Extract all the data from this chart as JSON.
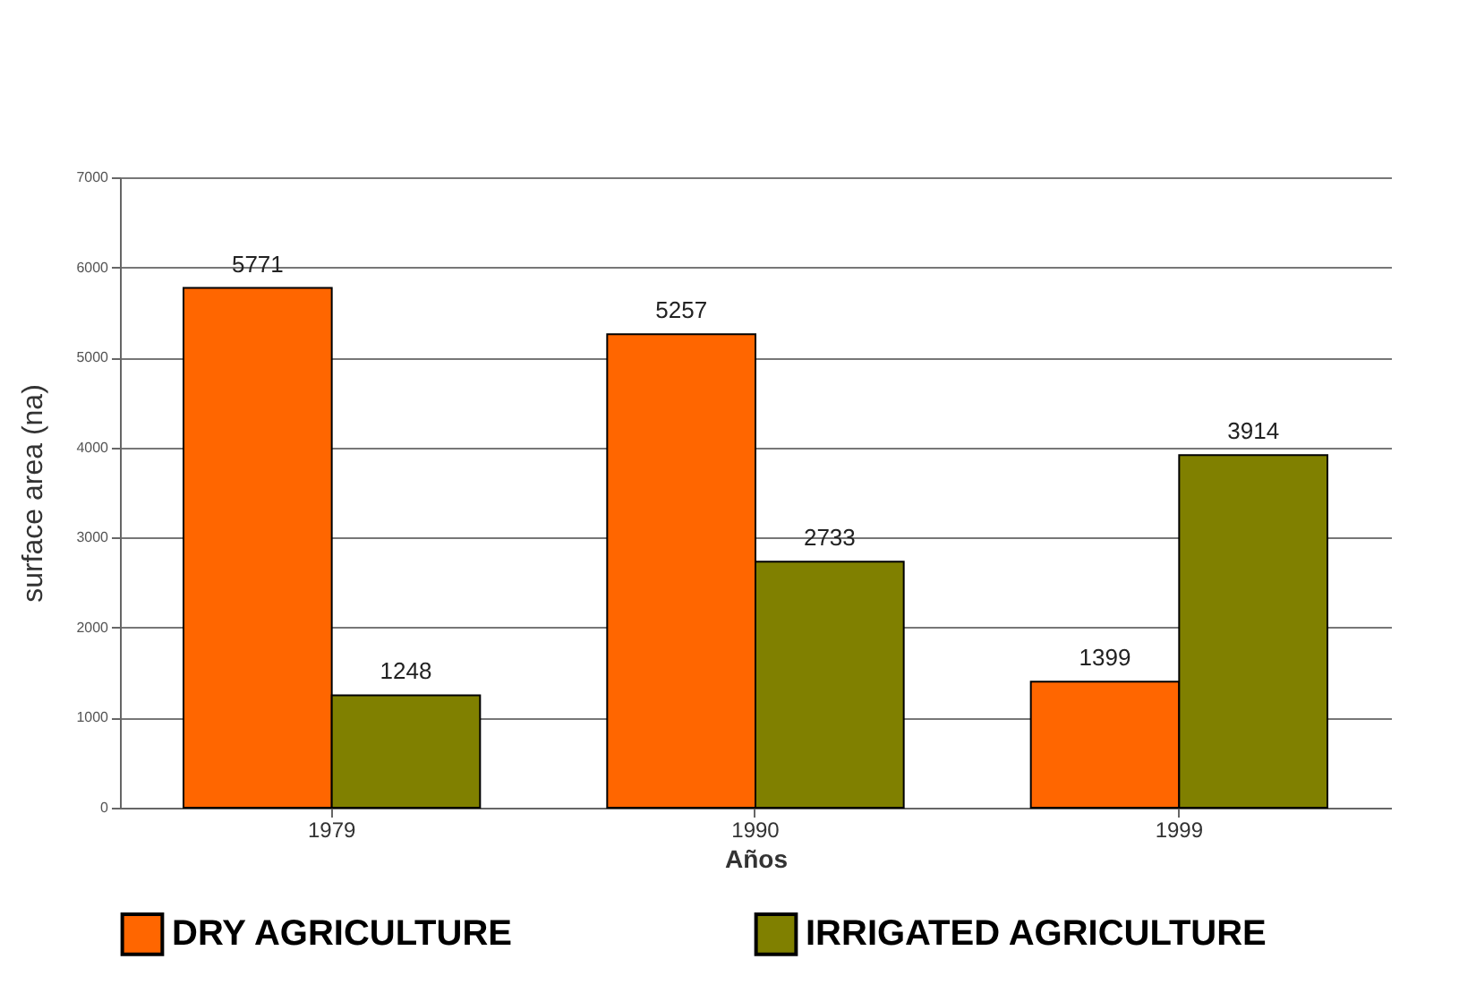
{
  "chart_data": {
    "type": "bar",
    "xlabel": "Años",
    "ylabel": "surface area (na)",
    "categories": [
      "1979",
      "1990",
      "1999"
    ],
    "series": [
      {
        "name": "DRY AGRICULTURE",
        "color": "#ff6600",
        "values": [
          5771,
          5257,
          1399
        ]
      },
      {
        "name": "IRRIGATED AGRICULTURE",
        "color": "#808000",
        "values": [
          1248,
          2733,
          3914
        ]
      }
    ],
    "ylim": [
      0,
      7000
    ],
    "yticks": [
      0,
      1000,
      2000,
      3000,
      4000,
      5000,
      6000,
      7000
    ],
    "grid": "y",
    "legend": "bottom",
    "data_labels": true
  }
}
